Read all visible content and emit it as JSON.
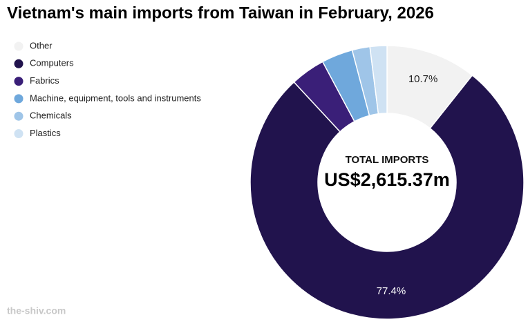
{
  "chart_data": {
    "type": "donut",
    "title": "Vietnam's main imports from Taiwan in February, 2026",
    "categories": [
      "Other",
      "Computers",
      "Fabrics",
      "Machine, equipment, tools and instruments",
      "Chemicals",
      "Plastics"
    ],
    "values": [
      10.7,
      77.4,
      4.1,
      3.7,
      2.1,
      2.0
    ],
    "value_labels": [
      "10.7%",
      "77.4%",
      null,
      null,
      null,
      null
    ],
    "colors": [
      "#f2f2f2",
      "#21134d",
      "#3a1f78",
      "#6fa8dc",
      "#9fc5e8",
      "#cfe2f3"
    ],
    "center_label": "TOTAL IMPORTS",
    "center_value": "US$2,615.37m",
    "source": "the-shiv.com",
    "legend": "top-left"
  }
}
